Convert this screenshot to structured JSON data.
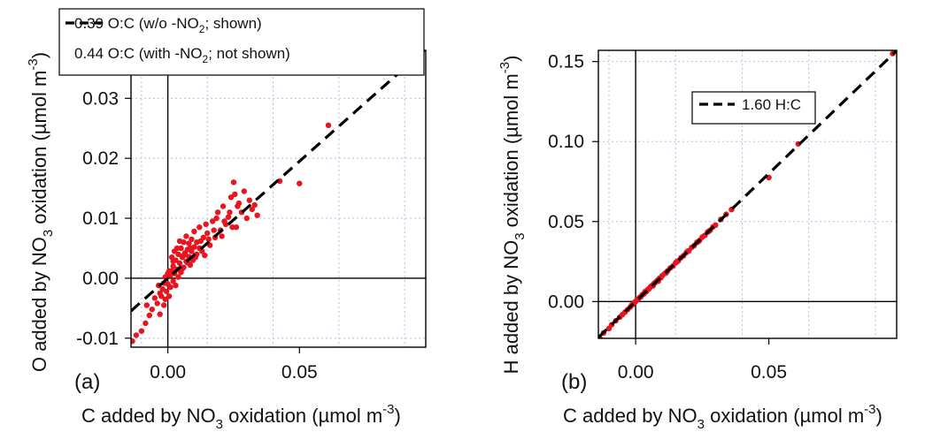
{
  "chart_data": [
    {
      "type": "scatter",
      "panel_label": "(a)",
      "xlabel": {
        "pre": "C added by NO",
        "sub": "3",
        "post": " oxidation (µmol m",
        "sup": "-3",
        "close": ")"
      },
      "ylabel": {
        "pre": "O added by NO",
        "sub": "3",
        "post": " oxidation (µmol m",
        "sup": "-3",
        "close": ")"
      },
      "xlim": [
        -0.014,
        0.098
      ],
      "ylim": [
        -0.0115,
        0.038
      ],
      "xticks": [
        0.0,
        0.05
      ],
      "xtick_labels": [
        "0.00",
        "0.05"
      ],
      "yticks": [
        -0.01,
        0.0,
        0.01,
        0.02,
        0.03
      ],
      "ytick_labels": [
        "-0.01",
        "0.00",
        "0.01",
        "0.02",
        "0.03"
      ],
      "grid": true,
      "legend": [
        {
          "style": "dashed",
          "pre": "0.39 O:C (w/o -NO",
          "sub": "2",
          "post": "; shown)"
        },
        {
          "style": "none",
          "pre": "0.44 O:C (with -NO",
          "sub": "2",
          "post": "; not shown)"
        }
      ],
      "fit_line": {
        "slope": 0.39,
        "x_range": [
          -0.014,
          0.098
        ]
      },
      "marker_color": "#e8141e",
      "points": [
        [
          -0.0135,
          -0.0105
        ],
        [
          -0.012,
          -0.0095
        ],
        [
          -0.01,
          -0.0088
        ],
        [
          -0.0085,
          -0.0075
        ],
        [
          -0.007,
          -0.0062
        ],
        [
          -0.008,
          -0.0045
        ],
        [
          -0.006,
          -0.0052
        ],
        [
          -0.005,
          -0.0033
        ],
        [
          -0.004,
          -0.0042
        ],
        [
          -0.003,
          -0.0025
        ],
        [
          -0.0035,
          -0.0012
        ],
        [
          -0.0025,
          -0.003
        ],
        [
          -0.002,
          -0.0018
        ],
        [
          -0.0015,
          -0.0008
        ],
        [
          -0.001,
          -0.0035
        ],
        [
          -0.001,
          0.0002
        ],
        [
          -0.0005,
          -0.0022
        ],
        [
          0.0,
          -0.001
        ],
        [
          0.0,
          0.0008
        ],
        [
          0.0005,
          -0.003
        ],
        [
          0.001,
          0.0005
        ],
        [
          0.001,
          -0.0015
        ],
        [
          0.0015,
          0.0012
        ],
        [
          0.002,
          -0.0005
        ],
        [
          0.002,
          0.002
        ],
        [
          0.0025,
          0.0008
        ],
        [
          0.003,
          0.003
        ],
        [
          0.003,
          -0.0012
        ],
        [
          0.0035,
          0.0015
        ],
        [
          0.004,
          0.004
        ],
        [
          0.004,
          0.0002
        ],
        [
          0.0045,
          0.0025
        ],
        [
          0.005,
          0.005
        ],
        [
          0.005,
          0.001
        ],
        [
          0.0055,
          0.0035
        ],
        [
          0.006,
          0.006
        ],
        [
          0.006,
          0.0018
        ],
        [
          0.0065,
          0.0042
        ],
        [
          0.007,
          0.0028
        ],
        [
          0.007,
          0.007
        ],
        [
          0.0075,
          0.0048
        ],
        [
          0.008,
          0.0036
        ],
        [
          0.008,
          0.0058
        ],
        [
          0.0085,
          0.0022
        ],
        [
          0.009,
          0.0045
        ],
        [
          0.009,
          0.0065
        ],
        [
          0.0095,
          0.003
        ],
        [
          0.01,
          0.0052
        ],
        [
          0.01,
          0.0078
        ],
        [
          0.011,
          0.004
        ],
        [
          0.011,
          0.006
        ],
        [
          0.012,
          0.005
        ],
        [
          0.012,
          0.0085
        ],
        [
          0.013,
          0.0045
        ],
        [
          0.0135,
          0.0068
        ],
        [
          0.014,
          0.0038
        ],
        [
          0.015,
          0.0075
        ],
        [
          0.016,
          0.0055
        ],
        [
          0.017,
          0.0095
        ],
        [
          0.018,
          0.0068
        ],
        [
          0.019,
          0.011
        ],
        [
          0.02,
          0.008
        ],
        [
          0.021,
          0.012
        ],
        [
          0.022,
          0.009
        ],
        [
          0.023,
          0.0102
        ],
        [
          0.024,
          0.0135
        ],
        [
          0.025,
          0.016
        ],
        [
          0.026,
          0.0085
        ],
        [
          0.027,
          0.0125
        ],
        [
          0.028,
          0.011
        ],
        [
          0.029,
          0.0145
        ],
        [
          0.03,
          0.01
        ],
        [
          0.031,
          0.013
        ],
        [
          0.032,
          0.0115
        ],
        [
          0.033,
          0.0122
        ],
        [
          0.034,
          0.0105
        ],
        [
          0.0025,
          0.0045
        ],
        [
          0.0045,
          0.0062
        ],
        [
          0.0015,
          0.0035
        ],
        [
          0.006,
          0.0038
        ],
        [
          0.0075,
          0.0026
        ],
        [
          0.0035,
          0.005
        ],
        [
          0.0085,
          0.005
        ],
        [
          0.0105,
          0.0035
        ],
        [
          0.0125,
          0.0062
        ],
        [
          0.0055,
          0.0016
        ],
        [
          0.002,
          0.0028
        ],
        [
          0.0005,
          0.0012
        ],
        [
          -0.0015,
          -0.0045
        ],
        [
          -0.003,
          -0.006
        ],
        [
          0.0145,
          0.009
        ],
        [
          0.0155,
          0.0065
        ],
        [
          0.0175,
          0.008
        ],
        [
          0.0185,
          0.01
        ],
        [
          0.0205,
          0.007
        ],
        [
          0.0215,
          0.0095
        ],
        [
          0.0235,
          0.011
        ],
        [
          0.0245,
          0.0085
        ],
        [
          0.0255,
          0.014
        ],
        [
          0.0265,
          0.012
        ],
        [
          0.0425,
          0.0162
        ],
        [
          0.05,
          0.0158
        ],
        [
          0.061,
          0.0255
        ],
        [
          0.0965,
          0.0375
        ]
      ]
    },
    {
      "type": "scatter",
      "panel_label": "(b)",
      "xlabel": {
        "pre": "C added by NO",
        "sub": "3",
        "post": " oxidation (µmol m",
        "sup": "-3",
        "close": ")"
      },
      "ylabel": {
        "pre": "H added by NO",
        "sub": "3",
        "post": " oxidation (µmol m",
        "sup": "-3",
        "close": ")"
      },
      "xlim": [
        -0.014,
        0.098
      ],
      "ylim": [
        -0.023,
        0.157
      ],
      "xticks": [
        0.0,
        0.05
      ],
      "xtick_labels": [
        "0.00",
        "0.05"
      ],
      "yticks": [
        0.0,
        0.05,
        0.1,
        0.15
      ],
      "ytick_labels": [
        "0.00",
        "0.05",
        "0.10",
        "0.15"
      ],
      "grid": true,
      "legend": [
        {
          "style": "dashed",
          "pre": "1.60 H:C",
          "sub": "",
          "post": ""
        }
      ],
      "fit_line": {
        "slope": 1.6,
        "x_range": [
          -0.014,
          0.098
        ]
      },
      "marker_color": "#e8141e",
      "points": [
        [
          -0.0135,
          -0.0225
        ],
        [
          -0.012,
          -0.0195
        ],
        [
          -0.01,
          -0.0168
        ],
        [
          -0.009,
          -0.0145
        ],
        [
          -0.0075,
          -0.012
        ],
        [
          -0.006,
          -0.0098
        ],
        [
          -0.005,
          -0.0082
        ],
        [
          -0.004,
          -0.0066
        ],
        [
          -0.003,
          -0.005
        ],
        [
          -0.002,
          -0.0034
        ],
        [
          -0.0015,
          -0.0022
        ],
        [
          -0.001,
          -0.0018
        ],
        [
          -0.0005,
          -0.0006
        ],
        [
          0.0,
          0.0
        ],
        [
          0.0005,
          0.001
        ],
        [
          0.001,
          0.0015
        ],
        [
          0.0015,
          0.0026
        ],
        [
          0.002,
          0.003
        ],
        [
          0.0025,
          0.0042
        ],
        [
          0.003,
          0.0048
        ],
        [
          0.0035,
          0.0058
        ],
        [
          0.004,
          0.0062
        ],
        [
          0.0045,
          0.0074
        ],
        [
          0.005,
          0.008
        ],
        [
          0.0055,
          0.009
        ],
        [
          0.006,
          0.0098
        ],
        [
          0.0065,
          0.0104
        ],
        [
          0.007,
          0.0114
        ],
        [
          0.0075,
          0.012
        ],
        [
          0.008,
          0.013
        ],
        [
          0.0085,
          0.0136
        ],
        [
          0.009,
          0.0146
        ],
        [
          0.0095,
          0.015
        ],
        [
          0.01,
          0.0162
        ],
        [
          0.011,
          0.0176
        ],
        [
          0.012,
          0.0192
        ],
        [
          0.013,
          0.021
        ],
        [
          0.014,
          0.0222
        ],
        [
          0.015,
          0.0242
        ],
        [
          0.016,
          0.0255
        ],
        [
          0.017,
          0.0274
        ],
        [
          0.018,
          0.0286
        ],
        [
          0.019,
          0.0306
        ],
        [
          0.02,
          0.0318
        ],
        [
          0.021,
          0.0338
        ],
        [
          0.022,
          0.035
        ],
        [
          0.023,
          0.037
        ],
        [
          0.024,
          0.0382
        ],
        [
          0.025,
          0.0402
        ],
        [
          0.026,
          0.0414
        ],
        [
          0.027,
          0.0434
        ],
        [
          0.028,
          0.0446
        ],
        [
          0.029,
          0.0466
        ],
        [
          0.03,
          0.0478
        ],
        [
          0.032,
          0.0514
        ],
        [
          0.034,
          0.0545
        ],
        [
          0.036,
          0.0575
        ],
        [
          0.0035,
          0.0062
        ],
        [
          0.0065,
          0.0098
        ],
        [
          0.0085,
          0.0128
        ],
        [
          0.0115,
          0.018
        ],
        [
          0.0155,
          0.025
        ],
        [
          0.0195,
          0.0314
        ],
        [
          0.0235,
          0.0374
        ],
        [
          0.0275,
          0.044
        ],
        [
          0.05,
          0.0775
        ],
        [
          0.061,
          0.0985
        ],
        [
          0.0965,
          0.155
        ]
      ]
    }
  ]
}
